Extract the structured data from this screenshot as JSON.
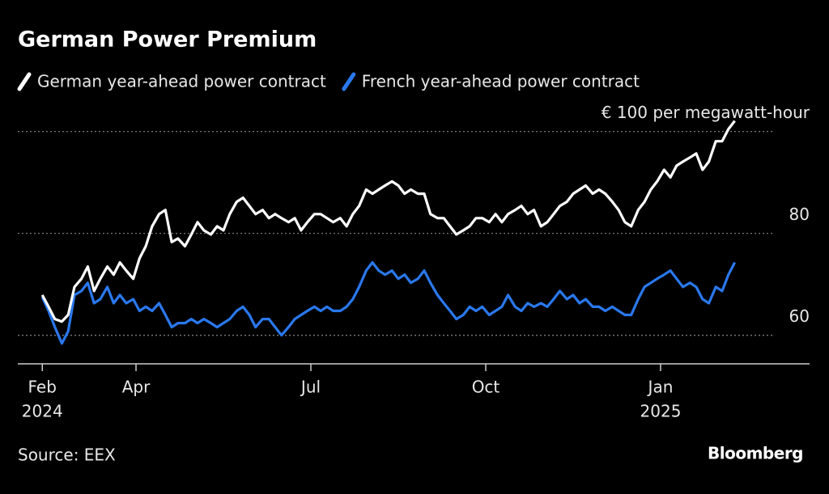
{
  "chart_data": {
    "type": "line",
    "title": "German Power Premium",
    "source": "Source: EEX",
    "brand": "Bloomberg",
    "x": [
      2024.116,
      2024.125,
      2024.134,
      2024.144,
      2024.153,
      2024.162,
      2024.172,
      2024.181,
      2024.19,
      2024.199,
      2024.209,
      2024.218,
      2024.227,
      2024.236,
      2024.246,
      2024.255,
      2024.264,
      2024.273,
      2024.283,
      2024.292,
      2024.301,
      2024.31,
      2024.32,
      2024.329,
      2024.338,
      2024.347,
      2024.357,
      2024.366,
      2024.375,
      2024.384,
      2024.394,
      2024.403,
      2024.412,
      2024.421,
      2024.431,
      2024.44,
      2024.449,
      2024.458,
      2024.468,
      2024.477,
      2024.486,
      2024.495,
      2024.505,
      2024.514,
      2024.523,
      2024.532,
      2024.542,
      2024.551,
      2024.56,
      2024.569,
      2024.579,
      2024.588,
      2024.597,
      2024.606,
      2024.616,
      2024.625,
      2024.634,
      2024.643,
      2024.653,
      2024.662,
      2024.671,
      2024.681,
      2024.69,
      2024.699,
      2024.708,
      2024.718,
      2024.727,
      2024.736,
      2024.745,
      2024.755,
      2024.764,
      2024.773,
      2024.782,
      2024.792,
      2024.801,
      2024.81,
      2024.819,
      2024.829,
      2024.838,
      2024.847,
      2024.856,
      2024.866,
      2024.875,
      2024.884,
      2024.893,
      2024.903,
      2024.912,
      2024.921,
      2024.931,
      2024.94,
      2024.949,
      2024.958,
      2024.968,
      2024.977,
      2024.986,
      2024.995,
      2025.005,
      2025.014,
      2025.023,
      2025.032,
      2025.042,
      2025.051,
      2025.06,
      2025.069,
      2025.079,
      2025.088,
      2025.097,
      2025.106
    ],
    "series": [
      {
        "name": "German year-ahead power contract",
        "color": "#ffffff",
        "values": [
          67.9,
          65.6,
          63.2,
          62.7,
          64.0,
          69.5,
          71.1,
          73.5,
          68.7,
          71.1,
          73.5,
          71.9,
          74.3,
          72.7,
          71.1,
          75.1,
          77.5,
          81.4,
          83.8,
          84.6,
          78.3,
          79.0,
          77.5,
          79.8,
          82.2,
          80.6,
          79.8,
          81.4,
          80.6,
          83.8,
          86.2,
          87.0,
          85.4,
          83.8,
          84.6,
          83.0,
          83.8,
          83.0,
          82.2,
          83.0,
          80.6,
          82.2,
          83.8,
          83.8,
          83.0,
          82.2,
          83.0,
          81.4,
          83.8,
          85.4,
          88.6,
          87.8,
          88.6,
          89.4,
          90.2,
          89.4,
          87.8,
          88.6,
          87.8,
          87.8,
          83.8,
          83.0,
          83.0,
          81.4,
          79.8,
          80.6,
          81.4,
          83.0,
          83.0,
          82.2,
          83.8,
          82.2,
          83.8,
          84.6,
          85.4,
          83.8,
          84.6,
          81.4,
          82.2,
          83.8,
          85.4,
          86.2,
          87.8,
          88.6,
          89.4,
          87.8,
          88.6,
          87.8,
          86.2,
          84.6,
          82.2,
          81.4,
          84.6,
          86.2,
          88.6,
          90.2,
          92.5,
          91.0,
          93.3,
          94.1,
          94.9,
          95.7,
          92.5,
          94.1,
          98.1,
          98.1,
          100.5,
          102.1
        ]
      },
      {
        "name": "French year-ahead power contract",
        "color": "#2a78ee",
        "values": [
          67.5,
          64.8,
          61.6,
          58.4,
          60.8,
          67.9,
          68.7,
          70.3,
          66.3,
          67.1,
          69.5,
          66.3,
          67.9,
          66.3,
          67.1,
          64.8,
          65.6,
          64.8,
          66.3,
          64.0,
          61.6,
          62.4,
          62.4,
          63.2,
          62.4,
          63.2,
          62.4,
          61.6,
          62.4,
          63.2,
          64.8,
          65.6,
          64.0,
          61.6,
          63.2,
          63.2,
          61.6,
          60.0,
          61.6,
          63.2,
          64.0,
          64.8,
          65.6,
          64.8,
          65.6,
          64.8,
          64.8,
          65.6,
          67.1,
          69.5,
          72.7,
          74.3,
          72.7,
          71.9,
          72.7,
          71.1,
          71.9,
          70.3,
          71.1,
          72.7,
          70.3,
          67.9,
          66.3,
          64.8,
          63.2,
          64.0,
          65.6,
          64.8,
          65.6,
          64.0,
          64.8,
          65.6,
          67.9,
          65.6,
          64.8,
          66.3,
          65.6,
          66.3,
          65.6,
          67.1,
          68.7,
          67.1,
          67.9,
          66.3,
          67.1,
          65.6,
          65.6,
          64.8,
          65.6,
          64.8,
          64.0,
          64.0,
          67.1,
          69.5,
          70.3,
          71.1,
          71.9,
          72.7,
          71.1,
          69.5,
          70.3,
          69.5,
          67.1,
          66.3,
          69.5,
          68.7,
          71.9,
          74.3
        ]
      }
    ],
    "xlim": [
      2024.081,
      2025.213
    ],
    "xticks": [
      {
        "value": 2024.116,
        "label": [
          "Feb",
          "2024"
        ]
      },
      {
        "value": 2024.25,
        "label": "Apr"
      },
      {
        "value": 2024.5,
        "label": "Jul"
      },
      {
        "value": 2024.75,
        "label": "Oct"
      },
      {
        "value": 2025.0,
        "label": [
          "Jan",
          "2025"
        ]
      }
    ],
    "ylim": [
      54.4,
      104
    ],
    "yticks": [
      60,
      80,
      {
        "value": 100,
        "label": "€ 100 per megawatt-hour"
      }
    ],
    "grid": true
  }
}
